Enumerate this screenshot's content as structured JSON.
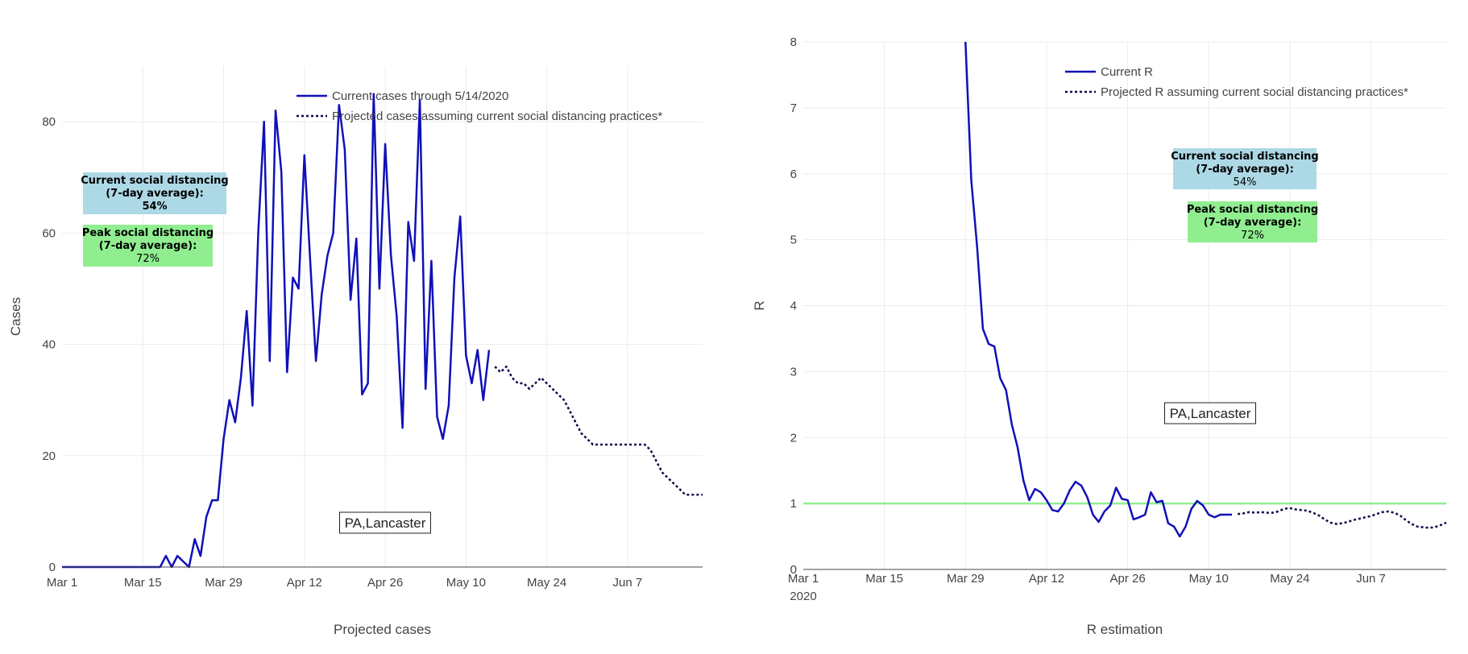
{
  "chart_data": [
    {
      "type": "line",
      "title": "",
      "xlabel": "Projected cases",
      "ylabel": "Cases",
      "xlim": [
        "2020-03-01",
        "2020-06-20"
      ],
      "ylim": [
        0,
        90
      ],
      "x_ticks": [
        "Mar 1",
        "Mar 15",
        "Mar 29",
        "Apr 12",
        "Apr 26",
        "May 10",
        "May 24",
        "Jun 7"
      ],
      "y_ticks": [
        0,
        20,
        40,
        60,
        80
      ],
      "grid": true,
      "legend_position": "top-right",
      "series": [
        {
          "name": "Current cases through 5/14/2020",
          "style": "solid",
          "color": "#1010b8",
          "start_date": "2020-03-01",
          "values": [
            0,
            0,
            0,
            0,
            0,
            0,
            0,
            0,
            0,
            0,
            0,
            0,
            0,
            0,
            0,
            0,
            0,
            0,
            2,
            0,
            2,
            1,
            0,
            5,
            2,
            9,
            12,
            12,
            23,
            30,
            26,
            34,
            46,
            29,
            60,
            80,
            37,
            82,
            71,
            35,
            52,
            50,
            74,
            55,
            37,
            49,
            56,
            60,
            83,
            75,
            48,
            59,
            31,
            33,
            85,
            50,
            76,
            56,
            45,
            25,
            62,
            55,
            84,
            32,
            55,
            27,
            23,
            29,
            52,
            63,
            38,
            33,
            39,
            30,
            39
          ]
        },
        {
          "name": "Projected cases assuming current social distancing practices*",
          "style": "dotted",
          "color": "#0a0a4a",
          "start_date": "2020-05-15",
          "values": [
            36,
            35,
            36,
            34,
            33,
            33,
            32,
            33,
            34,
            33,
            32,
            31,
            30,
            28,
            26,
            24,
            23,
            22,
            22,
            22,
            22,
            22,
            22,
            22,
            22,
            22,
            22,
            21,
            19,
            17,
            16,
            15,
            14,
            13,
            13,
            13,
            13
          ]
        }
      ],
      "annotations": {
        "current_box": {
          "line1": "Current social distancing",
          "line2": "(7-day average):",
          "value": "54%",
          "color": "#add8e6"
        },
        "peak_box": {
          "line1": "Peak social distancing",
          "line2": "(7-day average):",
          "value": "72%",
          "color": "#90ee90"
        },
        "location": "PA,Lancaster"
      }
    },
    {
      "type": "line",
      "title": "",
      "xlabel": "R estimation",
      "ylabel": "R",
      "xlim": [
        "2020-03-01",
        "2020-06-20"
      ],
      "ylim": [
        0,
        8
      ],
      "x_ticks": [
        "Mar 1",
        "Mar 15",
        "Mar 29",
        "Apr 12",
        "Apr 26",
        "May 10",
        "May 24",
        "Jun 7"
      ],
      "x_year_label": "2020",
      "y_ticks": [
        0,
        1,
        2,
        3,
        4,
        5,
        6,
        7,
        8
      ],
      "grid": true,
      "legend_position": "top-right",
      "reference_line": {
        "value": 1,
        "color": "#90ee90"
      },
      "series": [
        {
          "name": "Current R",
          "style": "solid",
          "color": "#1010b8",
          "start_date": "2020-03-29",
          "values": [
            8.0,
            5.9,
            4.9,
            3.65,
            3.42,
            3.38,
            2.9,
            2.72,
            2.2,
            1.85,
            1.35,
            1.05,
            1.22,
            1.17,
            1.05,
            0.9,
            0.88,
            1.0,
            1.2,
            1.33,
            1.27,
            1.1,
            0.83,
            0.72,
            0.88,
            0.97,
            1.24,
            1.07,
            1.05,
            0.76,
            0.79,
            0.83,
            1.17,
            1.02,
            1.04,
            0.7,
            0.65,
            0.5,
            0.65,
            0.92,
            1.04,
            0.97,
            0.83,
            0.79,
            0.83,
            0.83,
            0.83
          ]
        },
        {
          "name": "Projected R assuming current social distancing practices*",
          "style": "dotted",
          "color": "#0a0a4a",
          "start_date": "2020-05-15",
          "values": [
            0.84,
            0.85,
            0.87,
            0.86,
            0.87,
            0.86,
            0.86,
            0.88,
            0.92,
            0.93,
            0.91,
            0.9,
            0.89,
            0.86,
            0.82,
            0.76,
            0.71,
            0.69,
            0.7,
            0.72,
            0.75,
            0.77,
            0.79,
            0.81,
            0.84,
            0.87,
            0.88,
            0.86,
            0.82,
            0.75,
            0.69,
            0.65,
            0.64,
            0.63,
            0.64,
            0.67,
            0.71
          ]
        }
      ],
      "annotations": {
        "current_box": {
          "line1": "Current social distancing",
          "line2": "(7-day average):",
          "value": "54%",
          "color": "#add8e6"
        },
        "peak_box": {
          "line1": "Peak social distancing",
          "line2": "(7-day average):",
          "value": "72%",
          "color": "#90ee90"
        },
        "location": "PA,Lancaster"
      }
    }
  ]
}
